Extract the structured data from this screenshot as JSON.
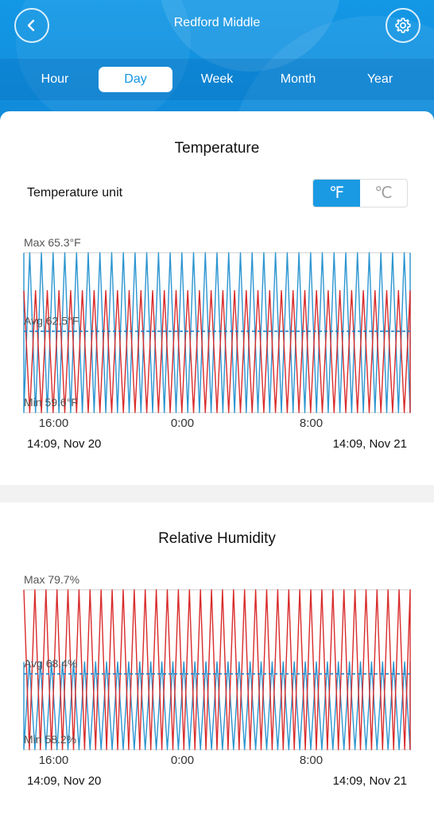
{
  "header": {
    "title": "Redford Middle",
    "back_icon": "chevron-left-icon",
    "settings_icon": "gear-icon"
  },
  "tabs": [
    {
      "label": "Hour",
      "active": false
    },
    {
      "label": "Day",
      "active": true
    },
    {
      "label": "Week",
      "active": false
    },
    {
      "label": "Month",
      "active": false
    },
    {
      "label": "Year",
      "active": false
    }
  ],
  "temperature": {
    "title": "Temperature",
    "unit_label": "Temperature unit",
    "unit_options": [
      "℉",
      "℃"
    ],
    "selected_unit": "℉",
    "start_date": "14:09,  Nov 20",
    "end_date": "14:09,  Nov 21"
  },
  "humidity": {
    "title": "Relative Humidity",
    "start_date": "14:09,  Nov 20",
    "end_date": "14:09,  Nov 21"
  },
  "colors": {
    "header_blue": "#1398e6",
    "accent_blue": "#1a9ae3",
    "series_blue": "#2b95d0",
    "series_red": "#d92b2b"
  },
  "chart_data": [
    {
      "type": "line",
      "unit": "°F",
      "max_label": "Max 65.3°F",
      "avg_label": "Avg 62.5°F",
      "min_label": "Min 59.6°F",
      "max": 65.3,
      "avg": 62.5,
      "min": 59.6,
      "ylim": [
        59.6,
        65.3
      ],
      "x_ticks": [
        "16:00",
        "0:00",
        "8:00"
      ],
      "x_tick_hours": [
        16,
        24,
        32
      ],
      "x_range_hours": [
        14.15,
        38.15
      ],
      "cycles": 33,
      "series": [
        {
          "color": "#2b95d0",
          "band": [
            59.6,
            65.3
          ]
        },
        {
          "color": "#d92b2b",
          "band": [
            59.6,
            63.95
          ]
        }
      ],
      "grid": true,
      "avg_line": "dashed"
    },
    {
      "type": "line",
      "unit": "%",
      "max_label": "Max 79.7%",
      "avg_label": "Avg 68.4%",
      "min_label": "Min 58.2%",
      "max": 79.7,
      "avg": 68.4,
      "min": 58.2,
      "ylim": [
        58.2,
        79.7
      ],
      "x_ticks": [
        "16:00",
        "0:00",
        "8:00"
      ],
      "x_tick_hours": [
        16,
        24,
        32
      ],
      "x_range_hours": [
        14.15,
        38.15
      ],
      "cycles": 35,
      "series": [
        {
          "color": "#2b95d0",
          "band": [
            58.2,
            70.0
          ]
        },
        {
          "color": "#d92b2b",
          "band": [
            58.2,
            79.7
          ]
        }
      ],
      "grid": true,
      "avg_line": "dashed"
    }
  ]
}
